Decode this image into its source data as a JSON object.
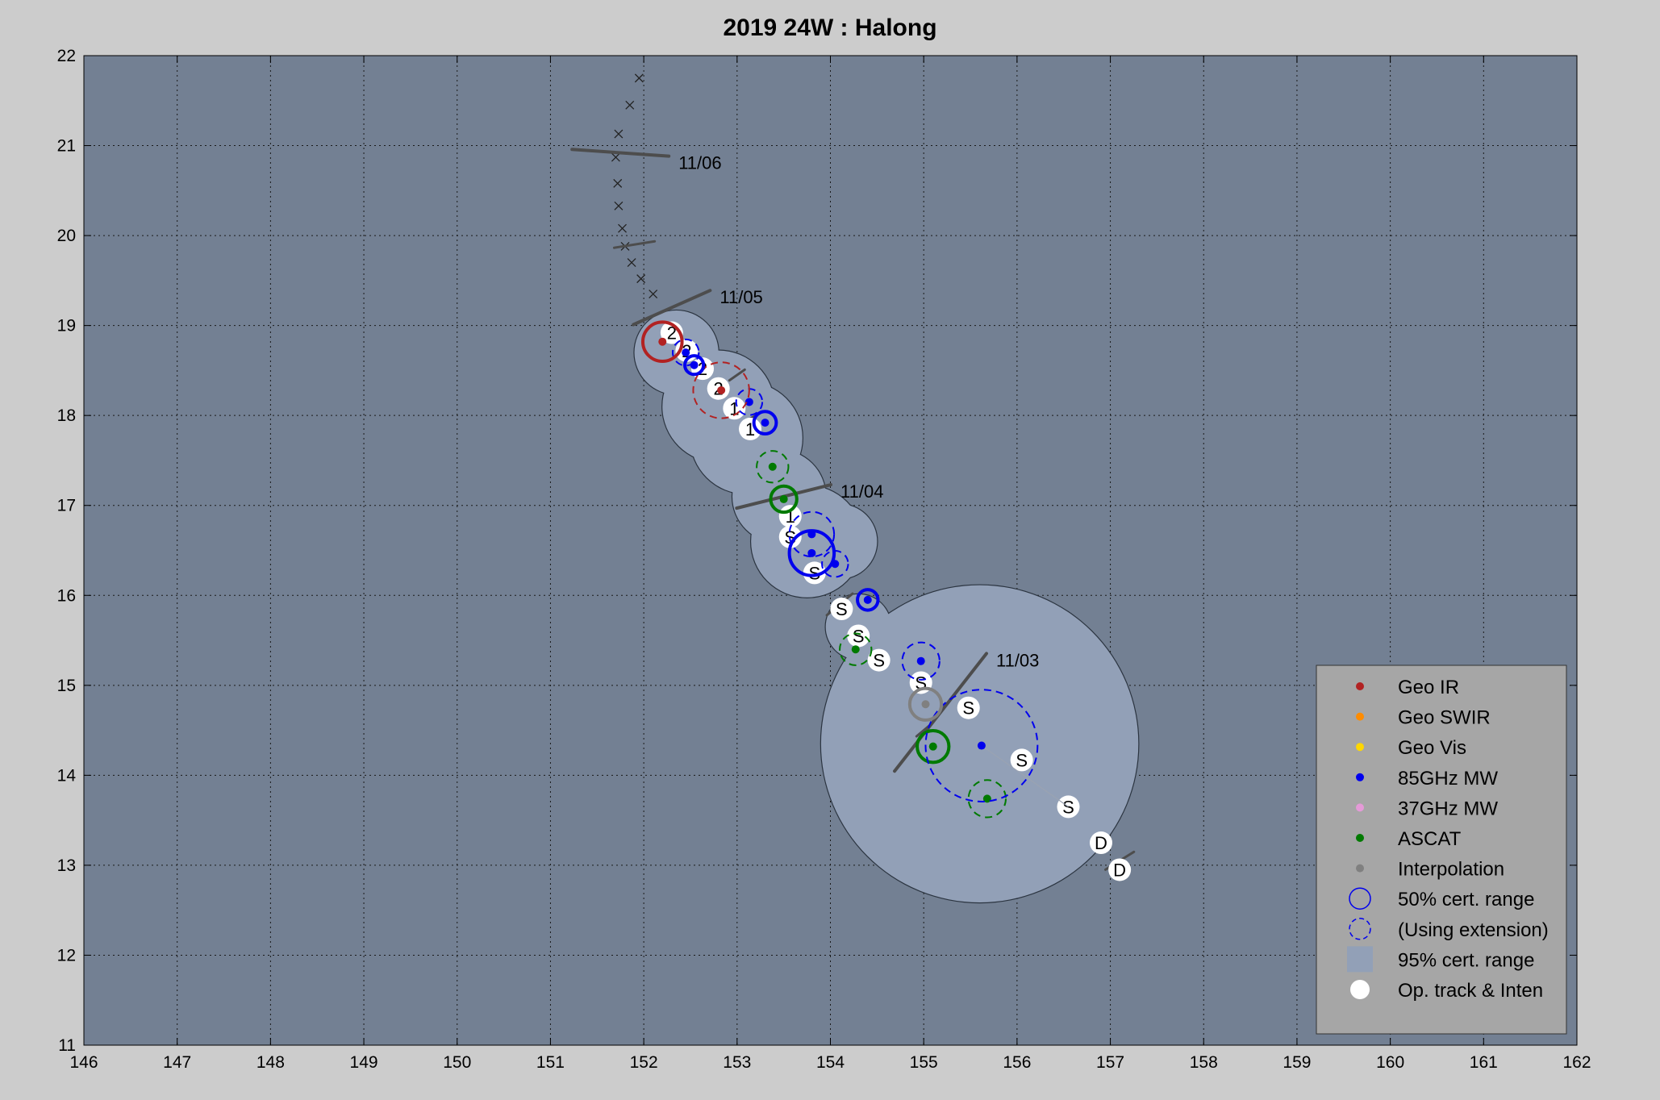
{
  "chart_data": {
    "type": "scatter",
    "title": "2019  24W :  Halong",
    "xlabel": "",
    "ylabel": "",
    "xlim": [
      146,
      162
    ],
    "ylim": [
      11,
      22
    ],
    "xticks": [
      "146",
      "147",
      "148",
      "149",
      "150",
      "151",
      "152",
      "153",
      "154",
      "155",
      "156",
      "157",
      "158",
      "159",
      "160",
      "161",
      "162"
    ],
    "yticks": [
      "11",
      "12",
      "13",
      "14",
      "15",
      "16",
      "17",
      "18",
      "19",
      "20",
      "21",
      "22"
    ],
    "grid": true,
    "legend_position": "bottom-right",
    "colors": {
      "background": "#cccccc",
      "plot_area": "#738093",
      "uncertainty_95": "#92a0b7",
      "geo_ir": "#b22222",
      "geo_swir": "#ff8c00",
      "geo_vis": "#ffd700",
      "mw85": "#0000ee",
      "mw37": "#e59ad8",
      "ascat": "#007a00",
      "interp": "#808080",
      "op_track": "#ffffff",
      "date_bar": "#4d4d4d"
    },
    "legend": [
      {
        "label": "Geo IR",
        "symbol": "dot",
        "color": "#b22222"
      },
      {
        "label": "Geo SWIR",
        "symbol": "dot",
        "color": "#ff8c00"
      },
      {
        "label": "Geo Vis",
        "symbol": "dot",
        "color": "#ffd700"
      },
      {
        "label": "85GHz MW",
        "symbol": "dot",
        "color": "#0000ee"
      },
      {
        "label": "37GHz MW",
        "symbol": "dot",
        "color": "#e59ad8"
      },
      {
        "label": "ASCAT",
        "symbol": "dot",
        "color": "#007a00"
      },
      {
        "label": "Interpolation",
        "symbol": "dot",
        "color": "#808080"
      },
      {
        "label": "50% cert. range",
        "symbol": "circle",
        "color": "#0000ee"
      },
      {
        "label": "(Using extension)",
        "symbol": "dashed-circle",
        "color": "#0000ee"
      },
      {
        "label": "95% cert. range",
        "symbol": "square",
        "color": "#92a0b7"
      },
      {
        "label": "Op. track & Inten",
        "symbol": "white-dot",
        "color": "#ffffff"
      }
    ],
    "uncertainty_95": [
      {
        "lon": 155.6,
        "lat": 14.35,
        "r": 1.7
      },
      {
        "lon": 154.3,
        "lat": 15.65,
        "r": 0.35
      },
      {
        "lon": 154.1,
        "lat": 16.6,
        "r": 0.4
      },
      {
        "lon": 153.75,
        "lat": 16.6,
        "r": 0.6
      },
      {
        "lon": 153.45,
        "lat": 17.1,
        "r": 0.5
      },
      {
        "lon": 153.1,
        "lat": 17.75,
        "r": 0.6
      },
      {
        "lon": 152.8,
        "lat": 18.1,
        "r": 0.6
      },
      {
        "lon": 152.35,
        "lat": 18.7,
        "r": 0.45
      }
    ],
    "op_track": [
      {
        "lon": 157.1,
        "lat": 12.95,
        "label": "D"
      },
      {
        "lon": 156.9,
        "lat": 13.25,
        "label": "D"
      },
      {
        "lon": 156.55,
        "lat": 13.65,
        "label": "S"
      },
      {
        "lon": 156.05,
        "lat": 14.17,
        "label": "S"
      },
      {
        "lon": 155.48,
        "lat": 14.75,
        "label": "S"
      },
      {
        "lon": 154.97,
        "lat": 15.03,
        "label": "S"
      },
      {
        "lon": 154.52,
        "lat": 15.28,
        "label": "S"
      },
      {
        "lon": 154.3,
        "lat": 15.55,
        "label": "S"
      },
      {
        "lon": 154.12,
        "lat": 15.85,
        "label": "S"
      },
      {
        "lon": 153.83,
        "lat": 16.25,
        "label": "S"
      },
      {
        "lon": 153.57,
        "lat": 16.65,
        "label": "S"
      },
      {
        "lon": 153.57,
        "lat": 16.88,
        "label": "1"
      },
      {
        "lon": 153.14,
        "lat": 17.85,
        "label": "1"
      },
      {
        "lon": 152.97,
        "lat": 18.08,
        "label": "1"
      },
      {
        "lon": 152.8,
        "lat": 18.3,
        "label": "2"
      },
      {
        "lon": 152.63,
        "lat": 18.52,
        "label": "2"
      },
      {
        "lon": 152.46,
        "lat": 18.72,
        "label": "2"
      },
      {
        "lon": 152.3,
        "lat": 18.92,
        "label": "2"
      }
    ],
    "fixes": [
      {
        "lon": 155.1,
        "lat": 14.32,
        "type": "ascat",
        "r": 0.17,
        "dashed": false
      },
      {
        "lon": 155.68,
        "lat": 13.74,
        "type": "ascat",
        "r": 0.2,
        "dashed": true
      },
      {
        "lon": 155.62,
        "lat": 14.33,
        "type": "mw85",
        "r": 0.6,
        "dashed": true
      },
      {
        "lon": 155.02,
        "lat": 14.79,
        "type": "interp",
        "r": 0.17,
        "dashed": false
      },
      {
        "lon": 154.97,
        "lat": 15.27,
        "type": "mw85",
        "r": 0.2,
        "dashed": true
      },
      {
        "lon": 154.27,
        "lat": 15.4,
        "type": "ascat",
        "r": 0.17,
        "dashed": true
      },
      {
        "lon": 154.4,
        "lat": 15.95,
        "type": "mw85",
        "r": 0.11,
        "dashed": false
      },
      {
        "lon": 154.05,
        "lat": 16.35,
        "type": "mw85",
        "r": 0.14,
        "dashed": true
      },
      {
        "lon": 153.8,
        "lat": 16.47,
        "type": "mw85",
        "r": 0.24,
        "dashed": false
      },
      {
        "lon": 153.8,
        "lat": 16.68,
        "type": "mw85",
        "r": 0.24,
        "dashed": true
      },
      {
        "lon": 153.5,
        "lat": 17.07,
        "type": "ascat",
        "r": 0.14,
        "dashed": false
      },
      {
        "lon": 153.38,
        "lat": 17.43,
        "type": "ascat",
        "r": 0.17,
        "dashed": true
      },
      {
        "lon": 153.3,
        "lat": 17.92,
        "type": "mw85",
        "r": 0.12,
        "dashed": false
      },
      {
        "lon": 153.13,
        "lat": 18.15,
        "type": "mw85",
        "r": 0.14,
        "dashed": true
      },
      {
        "lon": 152.83,
        "lat": 18.28,
        "type": "geo_ir",
        "r": 0.3,
        "dashed": true
      },
      {
        "lon": 152.54,
        "lat": 18.56,
        "type": "mw85",
        "r": 0.1,
        "dashed": false
      },
      {
        "lon": 152.45,
        "lat": 18.7,
        "type": "mw85",
        "r": 0.14,
        "dashed": true
      },
      {
        "lon": 152.2,
        "lat": 18.82,
        "type": "geo_ir",
        "r": 0.21,
        "dashed": false
      }
    ],
    "forecast_track": [
      {
        "lon": 151.95,
        "lat": 21.75
      },
      {
        "lon": 151.85,
        "lat": 21.45
      },
      {
        "lon": 151.73,
        "lat": 21.13
      },
      {
        "lon": 151.7,
        "lat": 20.87
      },
      {
        "lon": 151.72,
        "lat": 20.58
      },
      {
        "lon": 151.73,
        "lat": 20.33
      },
      {
        "lon": 151.77,
        "lat": 20.08
      },
      {
        "lon": 151.8,
        "lat": 19.88
      },
      {
        "lon": 151.87,
        "lat": 19.7
      },
      {
        "lon": 151.97,
        "lat": 19.52
      },
      {
        "lon": 152.1,
        "lat": 19.35
      }
    ],
    "date_marks": [
      {
        "label": "11/06",
        "lon": 151.75,
        "lat": 20.92,
        "angle_deg": -4,
        "half_len": 0.52
      },
      {
        "label": "11/05",
        "lon": 152.3,
        "lat": 19.2,
        "angle_deg": 24,
        "half_len": 0.45
      },
      {
        "label": "11/04",
        "lon": 153.5,
        "lat": 17.1,
        "angle_deg": 14,
        "half_len": 0.52
      },
      {
        "label": "11/03",
        "lon": 155.18,
        "lat": 14.7,
        "angle_deg": 52,
        "half_len": 0.8
      }
    ],
    "minor_date_marks": [
      {
        "lon": 151.9,
        "lat": 19.9,
        "angle_deg": 9,
        "half_len": 0.22
      },
      {
        "lon": 153.0,
        "lat": 18.45,
        "angle_deg": 35,
        "half_len": 0.1
      },
      {
        "lon": 153.2,
        "lat": 18.0,
        "angle_deg": 30,
        "half_len": 0.08
      },
      {
        "lon": 154.1,
        "lat": 15.9,
        "angle_deg": 40,
        "half_len": 0.18
      },
      {
        "lon": 155.0,
        "lat": 14.5,
        "angle_deg": 40,
        "half_len": 0.1
      },
      {
        "lon": 157.1,
        "lat": 13.05,
        "angle_deg": 32,
        "half_len": 0.18
      }
    ]
  }
}
